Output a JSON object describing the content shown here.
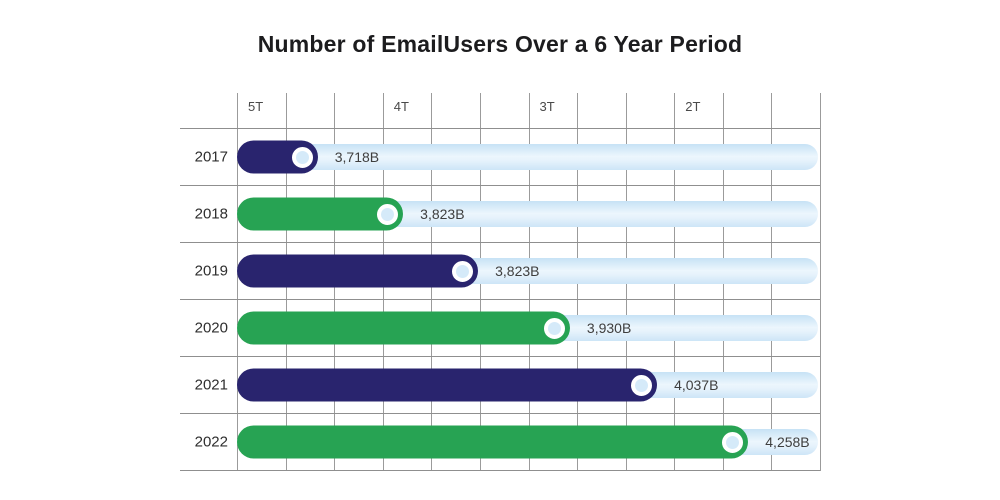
{
  "title": "Number of EmailUsers Over a 6 Year Period",
  "colors": {
    "navy": "#29246E",
    "green": "#27A353",
    "track_light_blue": "#D7EAF8",
    "knob_inner": "#D5EAF9",
    "knob_ring": "#FFFFFF",
    "gridline": "#9B9B9B",
    "title_text": "#1C1C1E"
  },
  "axis": {
    "ticks": [
      {
        "label": "5T",
        "column": 0
      },
      {
        "label": "4T",
        "column": 3
      },
      {
        "label": "3T",
        "column": 6
      },
      {
        "label": "2T",
        "column": 9
      }
    ],
    "columns": 12
  },
  "rows": [
    {
      "year": "2017",
      "value_label": "3,718B",
      "color": "navy",
      "fill_pct": 13.9
    },
    {
      "year": "2018",
      "value_label": "3,823B",
      "color": "green",
      "fill_pct": 28.6
    },
    {
      "year": "2019",
      "value_label": "3,823B",
      "color": "navy",
      "fill_pct": 41.5
    },
    {
      "year": "2020",
      "value_label": "3,930B",
      "color": "green",
      "fill_pct": 57.3
    },
    {
      "year": "2021",
      "value_label": "4,037B",
      "color": "navy",
      "fill_pct": 72.3
    },
    {
      "year": "2022",
      "value_label": "4,258B",
      "color": "green",
      "fill_pct": 88.0
    }
  ],
  "chart_data": {
    "type": "bar",
    "orientation": "horizontal",
    "title": "Number of EmailUsers Over a 6 Year Period",
    "categories": [
      "2017",
      "2018",
      "2019",
      "2020",
      "2021",
      "2022"
    ],
    "values": [
      3718,
      3823,
      3823,
      3930,
      4037,
      4258
    ],
    "value_labels": [
      "3,718B",
      "3,823B",
      "3,823B",
      "3,930B",
      "4,037B",
      "4,258B"
    ],
    "value_unit": "B",
    "top_axis_tick_labels": [
      "5T",
      "4T",
      "3T",
      "2T"
    ],
    "top_axis_direction": "descending left-to-right",
    "grid": true,
    "grid_columns": 12,
    "legend": false,
    "bar_colors_alternating": [
      "navy",
      "green"
    ],
    "bar_fill_fractions_of_track": [
      0.139,
      0.286,
      0.415,
      0.573,
      0.723,
      0.88
    ],
    "style_note": "toggle/slider style pills with white-ringed knob on light blue full-width track; bar lengths are decorative, not to axis scale"
  }
}
